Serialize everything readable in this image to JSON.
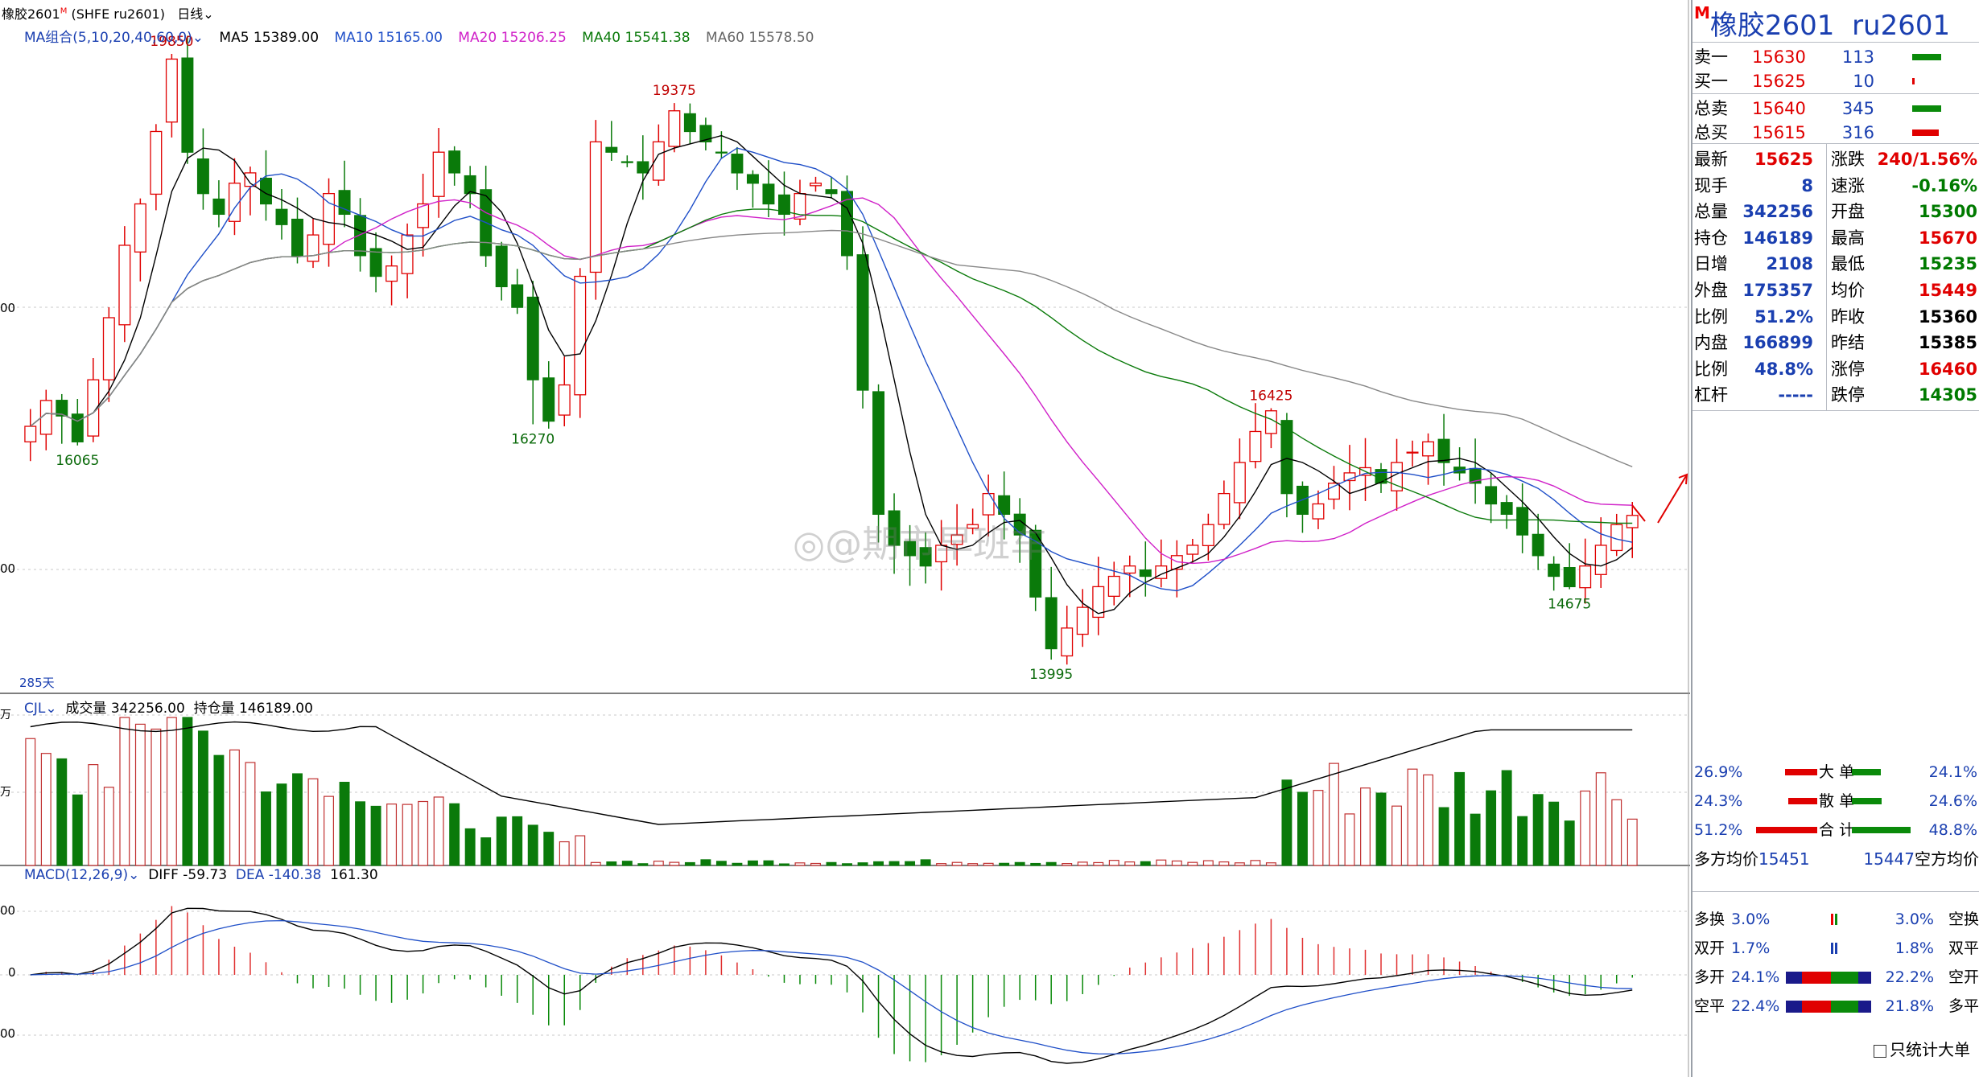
{
  "header": {
    "symbol_label": "橡胶2601",
    "symbol_sup": "M",
    "exchange": "(SHFE ru2601)",
    "period": "日线",
    "ma_group": "MA组合(5,10,20,40,60,0)",
    "ma": [
      {
        "label": "MA5 15389.00",
        "color": "#000000"
      },
      {
        "label": "MA10 15165.00",
        "color": "#1f4fc8"
      },
      {
        "label": "MA20 15206.25",
        "color": "#d020c8"
      },
      {
        "label": "MA40 15541.38",
        "color": "#0a7a0a"
      },
      {
        "label": "MA60 15578.50",
        "color": "#666666"
      }
    ]
  },
  "volume_header": {
    "name": "CJL",
    "volume": "成交量 342256.00",
    "oi": "持仓量 146189.00"
  },
  "macd_header": {
    "name": "MACD(12,26,9)",
    "diff": "DIFF -59.73",
    "dea": "DEA -140.38",
    "macd": "161.30"
  },
  "axis_labels": {
    "price_upper": "00",
    "price_lower": "00",
    "vol_upper": "万",
    "vol_lower": "万",
    "macd_upper": "00",
    "macd_zero": "0",
    "macd_lower": "00",
    "days": "285天"
  },
  "watermark": "@期市早班车",
  "chart_data": {
    "type": "candlestick",
    "price_range": [
      13700,
      20200
    ],
    "annotations": [
      {
        "text": "19850",
        "value": 19850,
        "bar": 9,
        "kind": "high"
      },
      {
        "text": "16065",
        "value": 16065,
        "bar": 3,
        "kind": "low"
      },
      {
        "text": "19375",
        "value": 19375,
        "bar": 41,
        "kind": "high"
      },
      {
        "text": "16270",
        "value": 16270,
        "bar": 32,
        "kind": "low"
      },
      {
        "text": "13995",
        "value": 13995,
        "bar": 65,
        "kind": "low"
      },
      {
        "text": "16425",
        "value": 16425,
        "bar": 79,
        "kind": "high"
      },
      {
        "text": "14675",
        "value": 14675,
        "bar": 98,
        "kind": "low"
      }
    ],
    "close": [
      16250,
      16500,
      16350,
      16100,
      16700,
      17300,
      18000,
      18400,
      19100,
      19800,
      18900,
      18500,
      18300,
      18600,
      18700,
      18400,
      18200,
      17900,
      18100,
      18500,
      18300,
      17900,
      17700,
      17800,
      18100,
      18400,
      18900,
      18700,
      18500,
      17900,
      17600,
      17400,
      16700,
      16300,
      16650,
      17700,
      19000,
      18900,
      18800,
      18700,
      19000,
      19300,
      19100,
      19000,
      18900,
      18700,
      18600,
      18400,
      18300,
      18500,
      18600,
      18500,
      17900,
      16600,
      15400,
      15100,
      15000,
      14900,
      15100,
      15200,
      15300,
      15600,
      15400,
      15200,
      14600,
      14100,
      14300,
      14500,
      14700,
      14800,
      14900,
      14800,
      14900,
      15000,
      15100,
      15300,
      15600,
      15900,
      16200,
      16400,
      15600,
      15400,
      15500,
      15700,
      15800,
      15850,
      15700,
      15900,
      16000,
      16100,
      15900,
      15800,
      15700,
      15500,
      15400,
      15200,
      15000,
      14800,
      14700,
      14900,
      15100,
      15300,
      15389
    ]
  },
  "panel": {
    "title": "橡胶2601",
    "title_sup": "M",
    "code": "ru2601",
    "orderbook": [
      {
        "label": "卖一",
        "price": "15630",
        "qty": "113",
        "bar": "#0a8a0a",
        "bar_w": 36
      },
      {
        "label": "买一",
        "price": "15625",
        "qty": "10",
        "bar": "#e00000",
        "bar_w": 3
      },
      {
        "label": "总卖",
        "price": "15640",
        "qty": "345",
        "bar": "#0a8a0a",
        "bar_w": 36
      },
      {
        "label": "总买",
        "price": "15615",
        "qty": "316",
        "bar": "#e00000",
        "bar_w": 33
      }
    ],
    "stats": [
      {
        "l1": "最新",
        "v1": "15625",
        "c1": "red",
        "l2": "涨跌",
        "v2": "240/1.56%",
        "c2": "red"
      },
      {
        "l1": "现手",
        "v1": "8",
        "c1": "blu",
        "l2": "速涨",
        "v2": "-0.16%",
        "c2": "grn"
      },
      {
        "l1": "总量",
        "v1": "342256",
        "c1": "blu",
        "l2": "开盘",
        "v2": "15300",
        "c2": "grn"
      },
      {
        "l1": "持仓",
        "v1": "146189",
        "c1": "blu",
        "l2": "最高",
        "v2": "15670",
        "c2": "red"
      },
      {
        "l1": "日增",
        "v1": "2108",
        "c1": "blu",
        "l2": "最低",
        "v2": "15235",
        "c2": "grn"
      },
      {
        "l1": "外盘",
        "v1": "175357",
        "c1": "blu",
        "l2": "均价",
        "v2": "15449",
        "c2": "red"
      },
      {
        "l1": "比例",
        "v1": "51.2%",
        "c1": "blu",
        "l2": "昨收",
        "v2": "15360",
        "c2": "blk"
      },
      {
        "l1": "内盘",
        "v1": "166899",
        "c1": "blu",
        "l2": "昨结",
        "v2": "15385",
        "c2": "blk"
      },
      {
        "l1": "比例",
        "v1": "48.8%",
        "c1": "blu",
        "l2": "涨停",
        "v2": "16460",
        "c2": "red"
      },
      {
        "l1": "杠杆",
        "v1": "-----",
        "c1": "blu",
        "l2": "跌停",
        "v2": "14305",
        "c2": "grn"
      }
    ],
    "flow": [
      {
        "left": "26.9%",
        "label": "大 单",
        "right": "24.1%",
        "lw": 40,
        "rw": 36
      },
      {
        "left": "24.3%",
        "label": "散 单",
        "right": "24.6%",
        "lw": 36,
        "rw": 37
      },
      {
        "left": "51.2%",
        "label": "合 计",
        "right": "48.8%",
        "lw": 76,
        "rw": 73
      }
    ],
    "avg": {
      "long": "多方均价",
      "long_val": "15451",
      "short_val": "15447",
      "short": "空方均价"
    },
    "positions": [
      {
        "l": "多换",
        "lv": "3.0%",
        "rv": "3.0%",
        "r": "空换"
      },
      {
        "l": "双开",
        "lv": "1.7%",
        "rv": "1.8%",
        "r": "双平"
      },
      {
        "l": "多开",
        "lv": "24.1%",
        "rv": "22.2%",
        "r": "空开"
      },
      {
        "l": "空平",
        "lv": "22.4%",
        "rv": "21.8%",
        "r": "多平"
      }
    ],
    "only_big": "只统计大单"
  }
}
